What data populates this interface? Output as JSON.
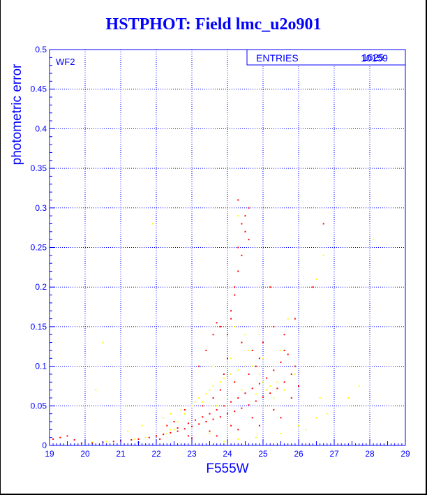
{
  "title": "HSTPHOT: Field lmc_u2o901",
  "panel_label": "WF2",
  "stats_box": {
    "label": "ENTRIES",
    "value_overlapping": [
      "10159",
      "1625"
    ]
  },
  "colors": {
    "axis": "#0000ff",
    "grid": "#0000ff",
    "series_red": "#ff0000",
    "series_yellow": "#ffff00"
  },
  "chart_data": {
    "type": "scatter",
    "title": "HSTPHOT: Field lmc_u2o901",
    "xlabel": "F555W",
    "ylabel": "photometric error",
    "xlim": [
      19,
      29
    ],
    "ylim": [
      0,
      0.5
    ],
    "x_ticks": [
      "19",
      "20",
      "21",
      "22",
      "23",
      "24",
      "25",
      "26",
      "27",
      "28",
      "29"
    ],
    "y_ticks": [
      "0",
      "0.05",
      "0.1",
      "0.15",
      "0.2",
      "0.25",
      "0.3",
      "0.35",
      "0.4",
      "0.45",
      "0.5"
    ],
    "grid": true,
    "series": [
      {
        "color": "#ffff00",
        "points": [
          [
            20.2,
            0.004
          ],
          [
            20.6,
            0.005
          ],
          [
            21.0,
            0.006
          ],
          [
            21.4,
            0.008
          ],
          [
            21.7,
            0.01
          ],
          [
            22.0,
            0.012
          ],
          [
            22.3,
            0.015
          ],
          [
            22.5,
            0.02
          ],
          [
            22.6,
            0.03
          ],
          [
            22.8,
            0.04
          ],
          [
            23.0,
            0.05
          ],
          [
            23.1,
            0.055
          ],
          [
            23.2,
            0.06
          ],
          [
            23.4,
            0.065
          ],
          [
            23.5,
            0.07
          ],
          [
            23.6,
            0.075
          ],
          [
            23.8,
            0.08
          ],
          [
            23.9,
            0.085
          ],
          [
            24.1,
            0.09
          ],
          [
            24.3,
            0.095
          ],
          [
            24.5,
            0.1
          ],
          [
            24.7,
            0.1
          ],
          [
            24.9,
            0.09
          ],
          [
            25.1,
            0.07
          ],
          [
            25.3,
            0.06
          ],
          [
            22.2,
            0.035
          ],
          [
            22.4,
            0.04
          ],
          [
            22.7,
            0.045
          ],
          [
            23.3,
            0.055
          ],
          [
            23.7,
            0.05
          ],
          [
            24.0,
            0.06
          ],
          [
            24.4,
            0.07
          ],
          [
            24.8,
            0.065
          ],
          [
            25.0,
            0.08
          ],
          [
            25.2,
            0.075
          ],
          [
            25.4,
            0.08
          ],
          [
            25.6,
            0.07
          ],
          [
            25.8,
            0.05
          ],
          [
            26.2,
            0.02
          ],
          [
            26.8,
            0.04
          ],
          [
            27.4,
            0.06
          ],
          [
            27.7,
            0.075
          ],
          [
            28.1,
            0.26
          ],
          [
            24.6,
            0.12
          ],
          [
            24.5,
            0.14
          ],
          [
            24.2,
            0.15
          ],
          [
            25.0,
            0.11
          ],
          [
            24.3,
            0.29
          ],
          [
            21.9,
            0.28
          ],
          [
            20.5,
            0.13
          ],
          [
            20.3,
            0.07
          ],
          [
            22.4,
            0.02
          ],
          [
            23.9,
            0.005
          ],
          [
            24.3,
            0.008
          ],
          [
            24.8,
            0.01
          ],
          [
            25.5,
            0.015
          ],
          [
            26.0,
            0.025
          ],
          [
            26.5,
            0.035
          ],
          [
            23.5,
            0.015
          ],
          [
            24.1,
            0.11
          ],
          [
            23.6,
            0.1
          ],
          [
            21.6,
            0.025
          ],
          [
            21.2,
            0.018
          ],
          [
            25.7,
            0.16
          ],
          [
            26.5,
            0.21
          ],
          [
            26.7,
            0.24
          ],
          [
            26.6,
            0.06
          ],
          [
            25.9,
            0.09
          ],
          [
            25.5,
            0.12
          ],
          [
            24.9,
            0.14
          ]
        ]
      },
      {
        "color": "#ff0000",
        "points": [
          [
            19.1,
            0.008
          ],
          [
            19.3,
            0.01
          ],
          [
            19.5,
            0.012
          ],
          [
            19.7,
            0.007
          ],
          [
            19.9,
            0.003
          ],
          [
            20.2,
            0.003
          ],
          [
            20.5,
            0.004
          ],
          [
            20.8,
            0.005
          ],
          [
            21.0,
            0.006
          ],
          [
            21.3,
            0.007
          ],
          [
            21.5,
            0.008
          ],
          [
            21.8,
            0.01
          ],
          [
            22.0,
            0.012
          ],
          [
            22.2,
            0.014
          ],
          [
            22.4,
            0.016
          ],
          [
            22.6,
            0.018
          ],
          [
            22.8,
            0.021
          ],
          [
            23.0,
            0.024
          ],
          [
            23.2,
            0.027
          ],
          [
            23.4,
            0.03
          ],
          [
            23.6,
            0.033
          ],
          [
            23.8,
            0.036
          ],
          [
            24.0,
            0.04
          ],
          [
            24.2,
            0.043
          ],
          [
            24.4,
            0.047
          ],
          [
            24.6,
            0.051
          ],
          [
            24.8,
            0.056
          ],
          [
            25.0,
            0.061
          ],
          [
            25.2,
            0.066
          ],
          [
            25.4,
            0.072
          ],
          [
            25.6,
            0.08
          ],
          [
            25.8,
            0.09
          ],
          [
            25.9,
            0.1
          ],
          [
            22.6,
            0.022
          ],
          [
            22.9,
            0.028
          ],
          [
            23.1,
            0.032
          ],
          [
            23.3,
            0.036
          ],
          [
            23.5,
            0.04
          ],
          [
            23.7,
            0.045
          ],
          [
            23.9,
            0.05
          ],
          [
            24.1,
            0.055
          ],
          [
            24.3,
            0.06
          ],
          [
            24.5,
            0.066
          ],
          [
            24.7,
            0.072
          ],
          [
            24.9,
            0.078
          ],
          [
            25.1,
            0.085
          ],
          [
            25.3,
            0.095
          ],
          [
            25.5,
            0.105
          ],
          [
            25.7,
            0.115
          ],
          [
            23.8,
            0.07
          ],
          [
            23.9,
            0.09
          ],
          [
            24.0,
            0.11
          ],
          [
            24.0,
            0.14
          ],
          [
            23.8,
            0.15
          ],
          [
            24.1,
            0.17
          ],
          [
            24.2,
            0.19
          ],
          [
            24.3,
            0.22
          ],
          [
            24.4,
            0.24
          ],
          [
            24.5,
            0.27
          ],
          [
            24.6,
            0.3
          ],
          [
            24.5,
            0.29
          ],
          [
            24.3,
            0.25
          ],
          [
            24.2,
            0.2
          ],
          [
            24.1,
            0.16
          ],
          [
            24.4,
            0.13
          ],
          [
            24.7,
            0.12
          ],
          [
            25.0,
            0.13
          ],
          [
            25.3,
            0.15
          ],
          [
            25.6,
            0.12
          ],
          [
            24.8,
            0.1
          ],
          [
            24.2,
            0.08
          ],
          [
            23.6,
            0.06
          ],
          [
            23.3,
            0.05
          ],
          [
            24.6,
            0.09
          ],
          [
            24.9,
            0.11
          ],
          [
            25.2,
            0.2
          ],
          [
            26.4,
            0.2
          ],
          [
            26.7,
            0.28
          ],
          [
            21.5,
            0.004
          ],
          [
            22.1,
            0.008
          ],
          [
            22.9,
            0.012
          ],
          [
            23.5,
            0.018
          ],
          [
            24.1,
            0.025
          ],
          [
            24.7,
            0.035
          ],
          [
            25.3,
            0.045
          ],
          [
            25.8,
            0.06
          ],
          [
            26.0,
            0.075
          ],
          [
            23.2,
            0.1
          ],
          [
            23.4,
            0.12
          ],
          [
            23.6,
            0.14
          ],
          [
            23.7,
            0.155
          ],
          [
            24.3,
            0.31
          ],
          [
            24.4,
            0.28
          ],
          [
            24.6,
            0.26
          ],
          [
            22.8,
            0.045
          ],
          [
            22.5,
            0.03
          ],
          [
            22.3,
            0.025
          ],
          [
            25.6,
            0.14
          ],
          [
            25.9,
            0.16
          ],
          [
            24.3,
            0.02
          ],
          [
            24.9,
            0.025
          ],
          [
            25.5,
            0.035
          ],
          [
            23.7,
            0.012
          ],
          [
            23.0,
            0.009
          ]
        ]
      }
    ]
  }
}
